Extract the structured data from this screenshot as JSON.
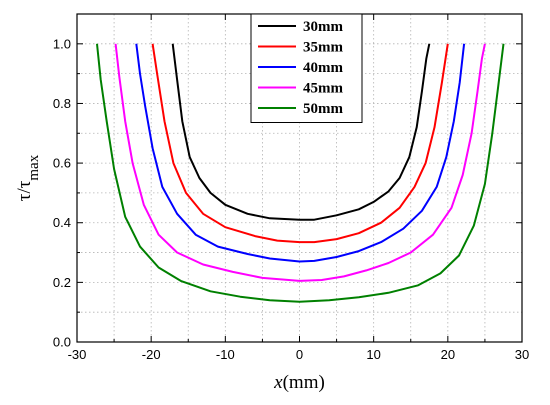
{
  "chart_data": {
    "type": "line",
    "xlabel": {
      "italic": "x",
      "rest": "(mm)"
    },
    "ylabel": {
      "main": "τ/τ",
      "sub": "max"
    },
    "xlim": [
      -30,
      30
    ],
    "ylim": [
      0,
      1.1
    ],
    "xticks": [
      -30,
      -20,
      -10,
      0,
      10,
      20,
      30
    ],
    "yticks": [
      0.0,
      0.2,
      0.4,
      0.6,
      0.8,
      1.0
    ],
    "xtick_labels": [
      "-30",
      "-20",
      "-10",
      "0",
      "10",
      "20",
      "30"
    ],
    "ytick_labels": [
      "0.0",
      "0.2",
      "0.4",
      "0.6",
      "0.8",
      "1.0"
    ],
    "grid": true,
    "legend_position": "top-right",
    "series": [
      {
        "name": "30mm",
        "color": "#000000",
        "points": [
          [
            -17.1,
            1.0
          ],
          [
            -16.5,
            0.88
          ],
          [
            -15.8,
            0.74
          ],
          [
            -14.8,
            0.62
          ],
          [
            -13.5,
            0.55
          ],
          [
            -12,
            0.5
          ],
          [
            -10,
            0.46
          ],
          [
            -7,
            0.43
          ],
          [
            -4,
            0.415
          ],
          [
            0,
            0.41
          ],
          [
            2,
            0.41
          ],
          [
            5,
            0.425
          ],
          [
            8,
            0.445
          ],
          [
            10,
            0.47
          ],
          [
            12,
            0.505
          ],
          [
            13.5,
            0.55
          ],
          [
            14.8,
            0.62
          ],
          [
            15.8,
            0.72
          ],
          [
            16.5,
            0.84
          ],
          [
            17.1,
            0.95
          ],
          [
            17.5,
            1.0
          ]
        ]
      },
      {
        "name": "35mm",
        "color": "#ff0000",
        "points": [
          [
            -19.8,
            1.0
          ],
          [
            -19.2,
            0.9
          ],
          [
            -18.2,
            0.74
          ],
          [
            -17,
            0.6
          ],
          [
            -15.3,
            0.5
          ],
          [
            -13,
            0.43
          ],
          [
            -10,
            0.385
          ],
          [
            -6,
            0.355
          ],
          [
            -3,
            0.34
          ],
          [
            0,
            0.335
          ],
          [
            2,
            0.335
          ],
          [
            5,
            0.345
          ],
          [
            8,
            0.365
          ],
          [
            11,
            0.4
          ],
          [
            13.5,
            0.45
          ],
          [
            15.5,
            0.52
          ],
          [
            17,
            0.6
          ],
          [
            18.2,
            0.72
          ],
          [
            19.2,
            0.87
          ],
          [
            20,
            1.0
          ]
        ]
      },
      {
        "name": "40mm",
        "color": "#0000ff",
        "points": [
          [
            -22,
            1.0
          ],
          [
            -21.5,
            0.9
          ],
          [
            -20.8,
            0.79
          ],
          [
            -19.8,
            0.65
          ],
          [
            -18.5,
            0.52
          ],
          [
            -16.5,
            0.43
          ],
          [
            -14,
            0.36
          ],
          [
            -11,
            0.32
          ],
          [
            -7,
            0.295
          ],
          [
            -4,
            0.28
          ],
          [
            0,
            0.27
          ],
          [
            2,
            0.272
          ],
          [
            5,
            0.285
          ],
          [
            8,
            0.305
          ],
          [
            11,
            0.335
          ],
          [
            14,
            0.38
          ],
          [
            16.5,
            0.44
          ],
          [
            18.5,
            0.52
          ],
          [
            19.8,
            0.62
          ],
          [
            20.8,
            0.74
          ],
          [
            21.6,
            0.87
          ],
          [
            22.2,
            1.0
          ]
        ]
      },
      {
        "name": "45mm",
        "color": "#ff00ff",
        "points": [
          [
            -24.8,
            1.0
          ],
          [
            -24.3,
            0.89
          ],
          [
            -23.5,
            0.74
          ],
          [
            -22.5,
            0.6
          ],
          [
            -21,
            0.46
          ],
          [
            -19,
            0.36
          ],
          [
            -16.5,
            0.3
          ],
          [
            -13,
            0.26
          ],
          [
            -9,
            0.235
          ],
          [
            -5,
            0.215
          ],
          [
            0,
            0.205
          ],
          [
            3,
            0.208
          ],
          [
            6,
            0.22
          ],
          [
            9,
            0.24
          ],
          [
            12,
            0.265
          ],
          [
            15,
            0.3
          ],
          [
            18,
            0.36
          ],
          [
            20.5,
            0.45
          ],
          [
            22,
            0.56
          ],
          [
            23.2,
            0.7
          ],
          [
            24,
            0.84
          ],
          [
            24.6,
            0.95
          ],
          [
            25,
            1.0
          ]
        ]
      },
      {
        "name": "50mm",
        "color": "#008000",
        "points": [
          [
            -27.3,
            1.0
          ],
          [
            -26.8,
            0.88
          ],
          [
            -26,
            0.74
          ],
          [
            -25,
            0.58
          ],
          [
            -23.5,
            0.42
          ],
          [
            -21.5,
            0.32
          ],
          [
            -19,
            0.25
          ],
          [
            -16,
            0.205
          ],
          [
            -12,
            0.17
          ],
          [
            -8,
            0.152
          ],
          [
            -4,
            0.14
          ],
          [
            0,
            0.135
          ],
          [
            4,
            0.14
          ],
          [
            8,
            0.15
          ],
          [
            12,
            0.165
          ],
          [
            16,
            0.19
          ],
          [
            19,
            0.23
          ],
          [
            21.5,
            0.29
          ],
          [
            23.5,
            0.39
          ],
          [
            25,
            0.53
          ],
          [
            26,
            0.7
          ],
          [
            26.8,
            0.86
          ],
          [
            27.5,
            1.0
          ]
        ]
      }
    ]
  }
}
